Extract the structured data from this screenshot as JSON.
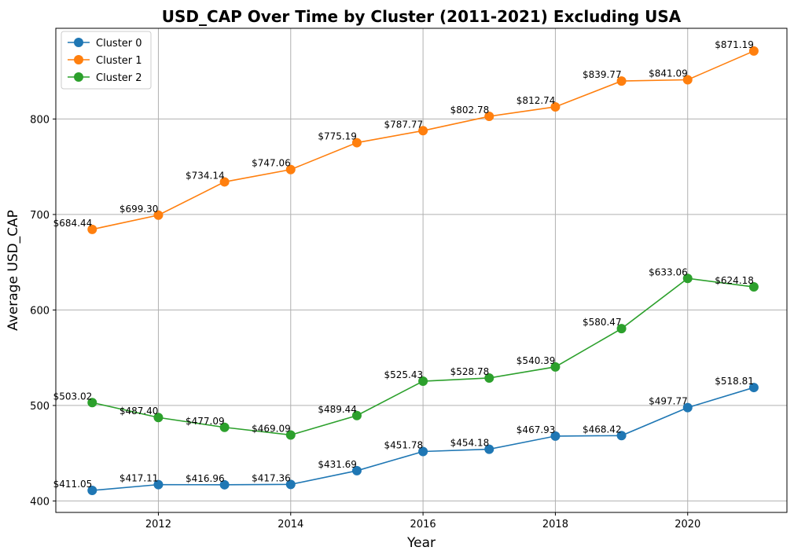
{
  "chart_data": {
    "type": "line",
    "title": "USD_CAP Over Time by Cluster (2011-2021) Excluding USA",
    "xlabel": "Year",
    "ylabel": "Average USD_CAP",
    "x": [
      2011,
      2012,
      2013,
      2014,
      2015,
      2016,
      2017,
      2018,
      2019,
      2020,
      2021
    ],
    "xlim": [
      2010.45,
      2021.5
    ],
    "ylim": [
      388,
      895
    ],
    "xticks": [
      2012,
      2014,
      2016,
      2018,
      2020
    ],
    "yticks": [
      400,
      500,
      600,
      700,
      800
    ],
    "grid": true,
    "legend_position": "top-left",
    "value_prefix": "$",
    "series": [
      {
        "name": "Cluster 0",
        "color": "#1f77b4",
        "values": [
          411.05,
          417.11,
          416.96,
          417.36,
          431.69,
          451.78,
          454.18,
          467.93,
          468.42,
          497.77,
          518.81
        ],
        "labels": [
          "$411.05",
          "$417.11",
          "$416.96",
          "$417.36",
          "$431.69",
          "$451.78",
          "$454.18",
          "$467.93",
          "$468.42",
          "$497.77",
          "$518.81"
        ]
      },
      {
        "name": "Cluster 1",
        "color": "#ff7f0e",
        "values": [
          684.44,
          699.3,
          734.14,
          747.06,
          775.19,
          787.77,
          802.78,
          812.74,
          839.77,
          841.09,
          871.19
        ],
        "labels": [
          "$684.44",
          "$699.30",
          "$734.14",
          "$747.06",
          "$775.19",
          "$787.77",
          "$802.78",
          "$812.74",
          "$839.77",
          "$841.09",
          "$871.19"
        ]
      },
      {
        "name": "Cluster 2",
        "color": "#2ca02c",
        "values": [
          503.02,
          487.4,
          477.09,
          469.09,
          489.44,
          525.43,
          528.78,
          540.39,
          580.47,
          633.06,
          624.18
        ],
        "labels": [
          "$503.02",
          "$487.40",
          "$477.09",
          "$469.09",
          "$489.44",
          "$525.43",
          "$528.78",
          "$540.39",
          "$580.47",
          "$633.06",
          "$624.18"
        ]
      }
    ]
  }
}
